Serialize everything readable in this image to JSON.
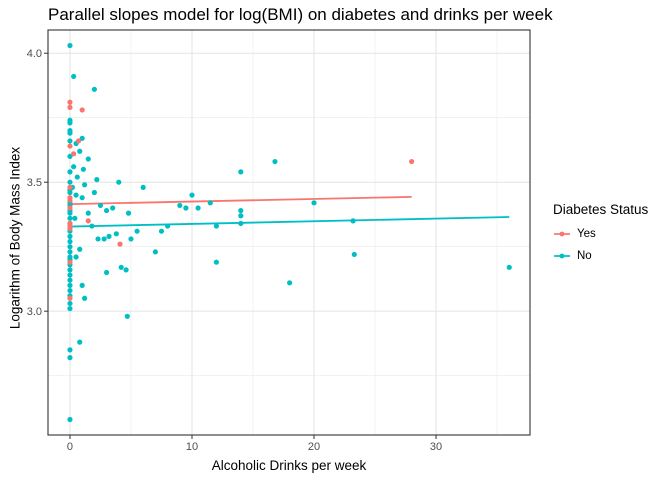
{
  "chart_data": {
    "type": "scatter",
    "title": "Parallel slopes model for log(BMI) on diabetes and drinks per week",
    "xlabel": "Alcoholic Drinks per week",
    "ylabel": "Logarithm of Body Mass Index",
    "xlim": [
      -1.8,
      37.7
    ],
    "ylim": [
      2.52,
      4.09
    ],
    "x_ticks": [
      0,
      10,
      20,
      30
    ],
    "x_tick_labels": [
      "0",
      "10",
      "20",
      "30"
    ],
    "y_ticks": [
      3.0,
      3.5,
      4.0
    ],
    "y_tick_labels": [
      "3.0",
      "3.5",
      "4.0"
    ],
    "grid": true,
    "legend": {
      "title": "Diabetes Status",
      "placement": "right"
    },
    "series": [
      {
        "name": "Yes",
        "color": "#F8766D",
        "points": [
          [
            0,
            3.81
          ],
          [
            0,
            3.79
          ],
          [
            0.3,
            3.61
          ],
          [
            0,
            3.64
          ],
          [
            0.7,
            3.66
          ],
          [
            1.0,
            3.78
          ],
          [
            0,
            3.48
          ],
          [
            0,
            3.44
          ],
          [
            0,
            3.43
          ],
          [
            0,
            3.4
          ],
          [
            1.5,
            3.35
          ],
          [
            0,
            3.34
          ],
          [
            0,
            3.33
          ],
          [
            0,
            3.32
          ],
          [
            0,
            3.19
          ],
          [
            0,
            3.05
          ],
          [
            4.1,
            3.26
          ],
          [
            28.0,
            3.58
          ]
        ],
        "fit": {
          "x": [
            0,
            28
          ],
          "y": [
            3.415,
            3.443
          ]
        }
      },
      {
        "name": "No",
        "color": "#00BFC4",
        "points": [
          [
            0,
            4.03
          ],
          [
            0.3,
            3.91
          ],
          [
            0,
            3.73
          ],
          [
            0,
            3.74
          ],
          [
            0,
            3.7
          ],
          [
            0,
            3.69
          ],
          [
            0,
            3.66
          ],
          [
            0.5,
            3.65
          ],
          [
            0.8,
            3.62
          ],
          [
            0,
            3.6
          ],
          [
            1.0,
            3.67
          ],
          [
            2.0,
            3.86
          ],
          [
            1.5,
            3.59
          ],
          [
            0.3,
            3.56
          ],
          [
            0,
            3.54
          ],
          [
            0,
            3.5
          ],
          [
            0,
            3.47
          ],
          [
            0,
            3.46
          ],
          [
            0.5,
            3.45
          ],
          [
            1.0,
            3.44
          ],
          [
            0,
            3.42
          ],
          [
            0,
            3.41
          ],
          [
            0,
            3.39
          ],
          [
            0,
            3.38
          ],
          [
            0,
            3.36
          ],
          [
            0,
            3.34
          ],
          [
            0,
            3.31
          ],
          [
            0,
            3.29
          ],
          [
            0,
            3.27
          ],
          [
            0,
            3.25
          ],
          [
            0,
            3.23
          ],
          [
            0,
            3.21
          ],
          [
            0,
            3.2
          ],
          [
            0,
            3.18
          ],
          [
            0,
            3.16
          ],
          [
            0,
            3.14
          ],
          [
            0,
            3.12
          ],
          [
            0,
            3.1
          ],
          [
            0,
            3.08
          ],
          [
            0,
            3.06
          ],
          [
            0,
            3.03
          ],
          [
            0,
            3.01
          ],
          [
            0,
            2.85
          ],
          [
            0,
            2.82
          ],
          [
            0,
            2.58
          ],
          [
            0.5,
            3.21
          ],
          [
            0.8,
            3.24
          ],
          [
            1.0,
            3.1
          ],
          [
            1.2,
            3.05
          ],
          [
            0.8,
            2.88
          ],
          [
            1.5,
            3.38
          ],
          [
            2.0,
            3.46
          ],
          [
            2.2,
            3.51
          ],
          [
            2.5,
            3.41
          ],
          [
            2.8,
            3.28
          ],
          [
            3.0,
            3.15
          ],
          [
            3.2,
            3.29
          ],
          [
            3.5,
            3.4
          ],
          [
            3.8,
            3.3
          ],
          [
            4.0,
            3.5
          ],
          [
            4.2,
            3.17
          ],
          [
            4.6,
            3.16
          ],
          [
            4.7,
            2.98
          ],
          [
            4.8,
            3.38
          ],
          [
            5.0,
            3.28
          ],
          [
            5.5,
            3.31
          ],
          [
            6.0,
            3.48
          ],
          [
            7.0,
            3.23
          ],
          [
            7.5,
            3.31
          ],
          [
            8.0,
            3.33
          ],
          [
            9.0,
            3.41
          ],
          [
            9.5,
            3.4
          ],
          [
            10.0,
            3.45
          ],
          [
            10.5,
            3.4
          ],
          [
            11.5,
            3.42
          ],
          [
            12.0,
            3.33
          ],
          [
            12.0,
            3.19
          ],
          [
            14.0,
            3.54
          ],
          [
            14.0,
            3.39
          ],
          [
            14.0,
            3.37
          ],
          [
            14.0,
            3.34
          ],
          [
            16.8,
            3.58
          ],
          [
            18.0,
            3.11
          ],
          [
            20.0,
            3.42
          ],
          [
            23.2,
            3.35
          ],
          [
            23.3,
            3.22
          ],
          [
            36.0,
            3.17
          ],
          [
            0.2,
            3.48
          ],
          [
            0.4,
            3.36
          ],
          [
            0.6,
            3.52
          ],
          [
            1.2,
            3.49
          ],
          [
            1.8,
            3.33
          ],
          [
            2.3,
            3.28
          ],
          [
            3.0,
            3.39
          ],
          [
            1.1,
            3.55
          ]
        ],
        "fit": {
          "x": [
            0,
            36
          ],
          "y": [
            3.328,
            3.365
          ]
        }
      }
    ]
  }
}
